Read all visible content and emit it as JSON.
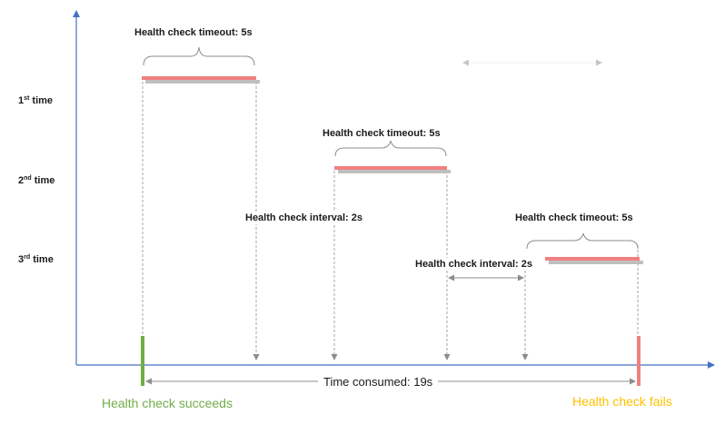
{
  "rows": [
    {
      "num": "1",
      "suffix": "st",
      "word": "time"
    },
    {
      "num": "2",
      "suffix": "nd",
      "word": "time"
    },
    {
      "num": "3",
      "suffix": "rd",
      "word": "time"
    }
  ],
  "labels": {
    "timeout_1": "Health check timeout: 5s",
    "timeout_2": "Health check timeout: 5s",
    "timeout_3": "Health check timeout: 5s",
    "interval_1": "Health check interval: 2s",
    "interval_2": "Health check interval: 2s",
    "time_consumed": "Time consumed: 19s"
  },
  "footer": {
    "success": "Health check succeeds",
    "failure": "Health check fails"
  },
  "colors": {
    "axis": "#4472c4",
    "timeout_bar": "#f08080",
    "timeout_bar_shadow": "#bfbfbf",
    "success": "#70ad47",
    "failure": "#ffc000",
    "fail_marker": "#f08080",
    "guide": "#a6a6a6"
  }
}
